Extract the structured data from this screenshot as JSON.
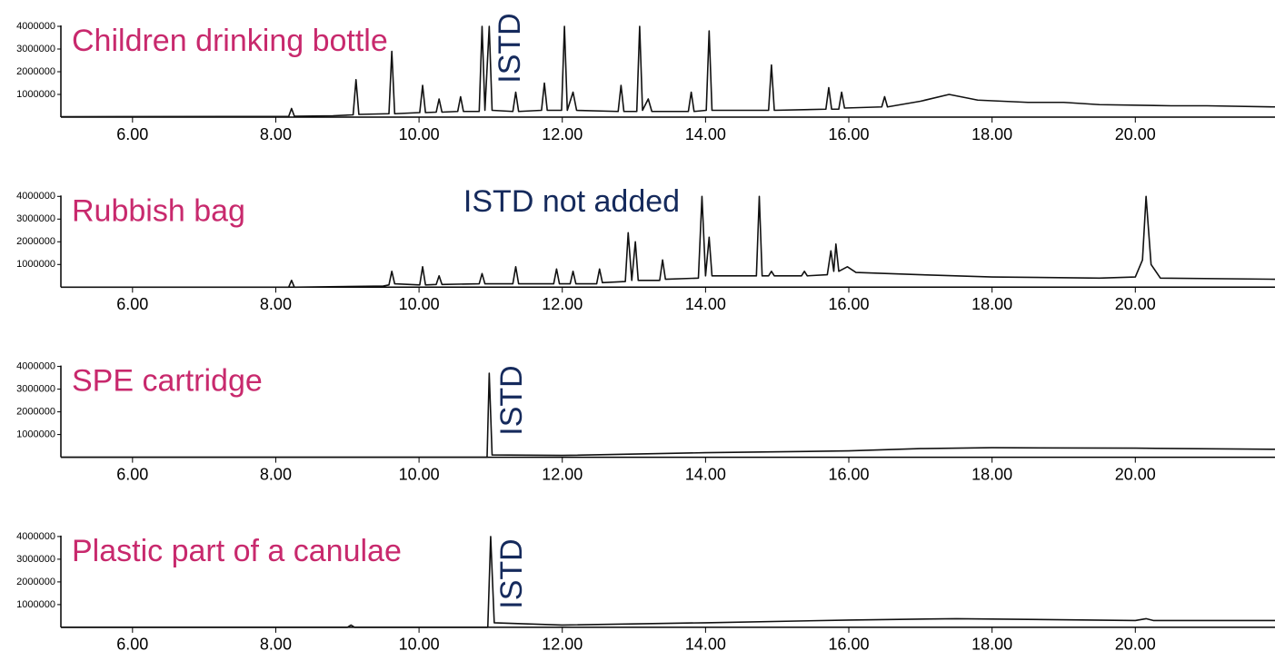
{
  "chart_data": [
    {
      "type": "line",
      "title": "Children drinking bottle",
      "annotation": "ISTD",
      "color": "#111111",
      "x": [
        5.0,
        7.9,
        8.18,
        8.22,
        8.26,
        8.8,
        9.08,
        9.12,
        9.16,
        9.58,
        9.62,
        9.66,
        10.01,
        10.05,
        10.09,
        10.24,
        10.28,
        10.32,
        10.54,
        10.58,
        10.62,
        10.84,
        10.88,
        10.92,
        10.98,
        11.02,
        11.31,
        11.35,
        11.39,
        11.71,
        11.75,
        11.79,
        11.99,
        12.03,
        12.07,
        12.15,
        12.2,
        12.78,
        12.82,
        12.86,
        13.04,
        13.08,
        13.12,
        13.2,
        13.25,
        13.76,
        13.8,
        13.84,
        14.01,
        14.05,
        14.09,
        14.88,
        14.92,
        14.96,
        15.68,
        15.72,
        15.76,
        15.86,
        15.9,
        15.94,
        16.46,
        16.5,
        16.54,
        17.0,
        17.4,
        17.8,
        18.5,
        19.0,
        19.5,
        20.5,
        21.0,
        21.95
      ],
      "values": [
        20000,
        30000,
        30000,
        380000,
        40000,
        60000,
        100000,
        1650000,
        120000,
        150000,
        2900000,
        150000,
        200000,
        1400000,
        200000,
        220000,
        800000,
        220000,
        250000,
        900000,
        250000,
        250000,
        4000000,
        300000,
        4000000,
        300000,
        250000,
        1100000,
        250000,
        300000,
        1500000,
        300000,
        300000,
        4000000,
        300000,
        1100000,
        300000,
        250000,
        1400000,
        250000,
        250000,
        4000000,
        300000,
        800000,
        250000,
        250000,
        1100000,
        250000,
        300000,
        3800000,
        300000,
        300000,
        2300000,
        300000,
        350000,
        1300000,
        350000,
        350000,
        1100000,
        400000,
        450000,
        900000,
        450000,
        700000,
        1000000,
        750000,
        650000,
        650000,
        550000,
        500000,
        500000,
        450000
      ],
      "xlim": [
        5.0,
        21.95
      ],
      "ylim": [
        0,
        4000000
      ],
      "xticks": [
        {
          "value": 6,
          "label": "6.00"
        },
        {
          "value": 8,
          "label": "8.00"
        },
        {
          "value": 10,
          "label": "10.00"
        },
        {
          "value": 12,
          "label": "12.00"
        },
        {
          "value": 14,
          "label": "14.00"
        },
        {
          "value": 16,
          "label": "16.00"
        },
        {
          "value": 18,
          "label": "18.00"
        },
        {
          "value": 20,
          "label": "20.00"
        }
      ],
      "yticks": [
        1000000,
        2000000,
        3000000,
        4000000
      ]
    },
    {
      "type": "line",
      "title": "Rubbish bag",
      "annotation": "ISTD not added",
      "color": "#111111",
      "x": [
        5.0,
        8.18,
        8.22,
        8.26,
        9.5,
        9.58,
        9.62,
        9.66,
        10.01,
        10.05,
        10.09,
        10.24,
        10.28,
        10.32,
        10.84,
        10.88,
        10.92,
        11.31,
        11.35,
        11.39,
        11.88,
        11.92,
        11.96,
        12.11,
        12.15,
        12.19,
        12.48,
        12.52,
        12.56,
        12.88,
        12.92,
        12.97,
        13.02,
        13.06,
        13.36,
        13.4,
        13.44,
        13.9,
        13.95,
        14.0,
        14.05,
        14.09,
        14.71,
        14.75,
        14.79,
        14.88,
        14.92,
        14.96,
        15.34,
        15.38,
        15.42,
        15.7,
        15.75,
        15.79,
        15.82,
        15.86,
        15.98,
        16.1,
        17.0,
        18.0,
        19.5,
        20.0,
        20.1,
        20.15,
        20.22,
        20.35,
        21.95
      ],
      "values": [
        0,
        0,
        300000,
        0,
        50000,
        100000,
        700000,
        150000,
        100000,
        900000,
        100000,
        120000,
        500000,
        120000,
        150000,
        600000,
        150000,
        150000,
        900000,
        150000,
        150000,
        800000,
        150000,
        150000,
        700000,
        150000,
        150000,
        800000,
        200000,
        250000,
        2400000,
        300000,
        2000000,
        300000,
        300000,
        1200000,
        350000,
        400000,
        4000000,
        500000,
        2200000,
        500000,
        500000,
        4000000,
        500000,
        500000,
        700000,
        500000,
        500000,
        700000,
        500000,
        550000,
        1600000,
        700000,
        1900000,
        700000,
        900000,
        650000,
        550000,
        450000,
        400000,
        450000,
        1200000,
        4000000,
        1000000,
        400000,
        350000
      ],
      "xlim": [
        5.0,
        21.95
      ],
      "ylim": [
        0,
        4000000
      ],
      "xticks": [
        {
          "value": 6,
          "label": "6.00"
        },
        {
          "value": 8,
          "label": "8.00"
        },
        {
          "value": 10,
          "label": "10.00"
        },
        {
          "value": 12,
          "label": "12.00"
        },
        {
          "value": 14,
          "label": "14.00"
        },
        {
          "value": 16,
          "label": "16.00"
        },
        {
          "value": 18,
          "label": "18.00"
        },
        {
          "value": 20,
          "label": "20.00"
        }
      ],
      "yticks": [
        1000000,
        2000000,
        3000000,
        4000000
      ]
    },
    {
      "type": "line",
      "title": "SPE cartridge",
      "annotation": "ISTD",
      "color": "#111111",
      "x": [
        5.0,
        10.95,
        10.98,
        11.02,
        12.0,
        14.0,
        16.0,
        17.0,
        18.0,
        20.0,
        21.95
      ],
      "values": [
        0,
        0,
        3700000,
        100000,
        80000,
        200000,
        280000,
        380000,
        420000,
        400000,
        350000
      ],
      "xlim": [
        5.0,
        21.95
      ],
      "ylim": [
        0,
        4000000
      ],
      "xticks": [
        {
          "value": 6,
          "label": "6.00"
        },
        {
          "value": 8,
          "label": "8.00"
        },
        {
          "value": 10,
          "label": "10.00"
        },
        {
          "value": 12,
          "label": "12.00"
        },
        {
          "value": 14,
          "label": "14.00"
        },
        {
          "value": 16,
          "label": "16.00"
        },
        {
          "value": 18,
          "label": "18.00"
        },
        {
          "value": 20,
          "label": "20.00"
        }
      ],
      "yticks": [
        1000000,
        2000000,
        3000000,
        4000000
      ]
    },
    {
      "type": "line",
      "title": "Plastic part of a canulae",
      "annotation": "ISTD",
      "color": "#111111",
      "x": [
        5.0,
        9.0,
        9.05,
        9.1,
        10.96,
        11.0,
        11.05,
        12.0,
        14.0,
        16.0,
        17.5,
        20.0,
        20.15,
        20.25,
        21.95
      ],
      "values": [
        0,
        0,
        100000,
        0,
        0,
        4000000,
        200000,
        100000,
        200000,
        320000,
        380000,
        300000,
        380000,
        300000,
        300000
      ],
      "xlim": [
        5.0,
        21.95
      ],
      "ylim": [
        0,
        4000000
      ],
      "xticks": [
        {
          "value": 6,
          "label": "6.00"
        },
        {
          "value": 8,
          "label": "8.00"
        },
        {
          "value": 10,
          "label": "10.00"
        },
        {
          "value": 12,
          "label": "12.00"
        },
        {
          "value": 14,
          "label": "14.00"
        },
        {
          "value": 16,
          "label": "16.00"
        },
        {
          "value": 18,
          "label": "18.00"
        },
        {
          "value": 20,
          "label": "20.00"
        }
      ],
      "yticks": [
        1000000,
        2000000,
        3000000,
        4000000
      ]
    }
  ]
}
